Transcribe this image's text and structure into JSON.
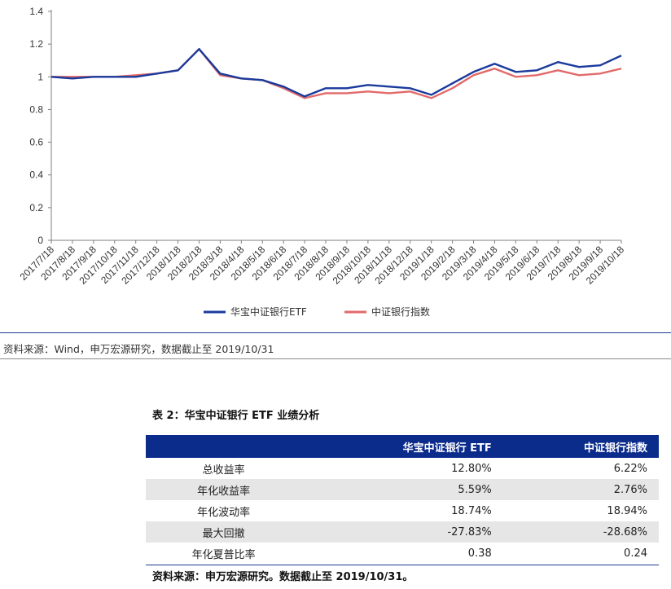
{
  "chart_data": {
    "type": "line",
    "ylim": [
      0,
      1.4
    ],
    "yticks": [
      "0",
      "0.2",
      "0.4",
      "0.6",
      "0.8",
      "1",
      "1.2",
      "1.4"
    ],
    "categories": [
      "2017/7/18",
      "2017/8/18",
      "2017/9/18",
      "2017/10/18",
      "2017/11/18",
      "2017/12/18",
      "2018/1/18",
      "2018/2/18",
      "2018/3/18",
      "2018/4/18",
      "2018/5/18",
      "2018/6/18",
      "2018/7/18",
      "2018/8/18",
      "2018/9/18",
      "2018/10/18",
      "2018/11/18",
      "2018/12/18",
      "2019/1/18",
      "2019/2/18",
      "2019/3/18",
      "2019/4/18",
      "2019/5/18",
      "2019/6/18",
      "2019/7/18",
      "2019/8/18",
      "2019/9/18",
      "2019/10/18"
    ],
    "legend_position": "bottom",
    "series": [
      {
        "name": "华宝中证银行ETF",
        "color": "#1a3a9c",
        "values": [
          1.0,
          0.99,
          1.0,
          1.0,
          1.0,
          1.02,
          1.04,
          1.17,
          1.02,
          0.99,
          0.98,
          0.94,
          0.88,
          0.93,
          0.93,
          0.95,
          0.94,
          0.93,
          0.89,
          0.96,
          1.03,
          1.08,
          1.03,
          1.04,
          1.09,
          1.06,
          1.07,
          1.13
        ]
      },
      {
        "name": "中证银行指数",
        "color": "#e26a6a",
        "values": [
          1.0,
          1.0,
          1.0,
          1.0,
          1.01,
          1.02,
          1.04,
          1.17,
          1.01,
          0.99,
          0.98,
          0.93,
          0.87,
          0.9,
          0.9,
          0.91,
          0.9,
          0.91,
          0.87,
          0.93,
          1.01,
          1.05,
          1.0,
          1.01,
          1.04,
          1.01,
          1.02,
          1.05
        ]
      }
    ]
  },
  "source_note": "资料来源：Wind，申万宏源研究，数据截止至 2019/10/31",
  "table": {
    "title": "表 2：华宝中证银行 ETF 业绩分析",
    "headers": [
      "",
      "华宝中证银行 ETF",
      "中证银行指数"
    ],
    "rows": [
      {
        "metric": "总收益率",
        "etf": "12.80%",
        "index": "6.22%"
      },
      {
        "metric": "年化收益率",
        "etf": "5.59%",
        "index": "2.76%"
      },
      {
        "metric": "年化波动率",
        "etf": "18.74%",
        "index": "18.94%"
      },
      {
        "metric": "最大回撤",
        "etf": "-27.83%",
        "index": "-28.68%"
      },
      {
        "metric": "年化夏普比率",
        "etf": "0.38",
        "index": "0.24"
      }
    ],
    "footnote": "资料来源：申万宏源研究。数据截止至 2019/10/31。"
  }
}
